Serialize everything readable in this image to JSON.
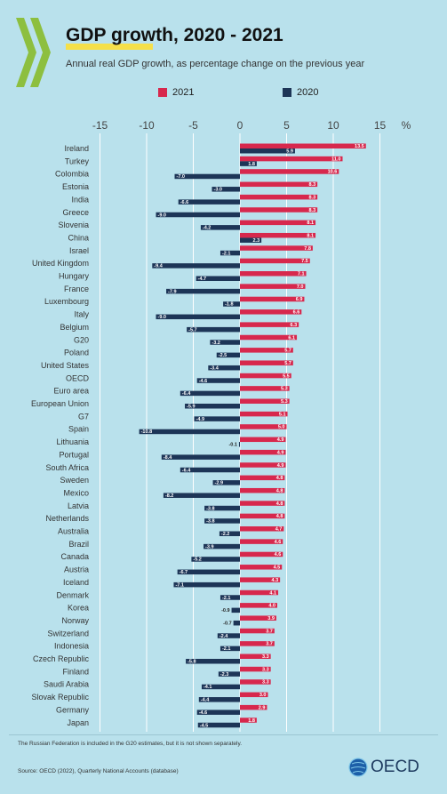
{
  "header": {
    "title": "GDP growth, 2020 - 2021",
    "subtitle": "Annual real GDP growth, as percentage change on the previous year"
  },
  "footer": {
    "note": "The Russian Federation is included in the G20 estimates, but it is not shown separately.",
    "source": "Source: OECD (2022), Quarterly National Accounts (database)",
    "brand": "OECD"
  },
  "colors": {
    "series_2021": "#d7284d",
    "series_2020": "#1d3557",
    "background": "#b9e1ec",
    "grid": "#ffffff",
    "title_highlight": "#f5e04a"
  },
  "chart_data": {
    "type": "bar",
    "orientation": "horizontal",
    "title": "GDP growth, 2020 - 2021",
    "subtitle": "Annual real GDP growth, as percentage change on the previous year",
    "x_unit": "%",
    "xlim": [
      -15,
      15
    ],
    "xticks": [
      -15,
      -10,
      -5,
      0,
      5,
      10,
      15
    ],
    "grid": true,
    "legend_position": "top",
    "categories": [
      "Ireland",
      "Turkey",
      "Colombia",
      "Estonia",
      "India",
      "Greece",
      "Slovenia",
      "China",
      "Israel",
      "United Kingdom",
      "Hungary",
      "France",
      "Luxembourg",
      "Italy",
      "Belgium",
      "G20",
      "Poland",
      "United States",
      "OECD",
      "Euro area",
      "European Union",
      "G7",
      "Spain",
      "Lithuania",
      "Portugal",
      "South Africa",
      "Sweden",
      "Mexico",
      "Latvia",
      "Netherlands",
      "Australia",
      "Brazil",
      "Canada",
      "Austria",
      "Iceland",
      "Denmark",
      "Korea",
      "Norway",
      "Switzerland",
      "Indonesia",
      "Czech Republic",
      "Finland",
      "Saudi Arabia",
      "Slovak Republic",
      "Germany",
      "Japan"
    ],
    "series": [
      {
        "name": "2021",
        "values": [
          13.5,
          11.0,
          10.6,
          8.3,
          8.3,
          8.3,
          8.1,
          8.1,
          7.8,
          7.5,
          7.1,
          7.0,
          6.9,
          6.6,
          6.3,
          6.1,
          5.7,
          5.7,
          5.5,
          5.3,
          5.3,
          5.1,
          5.0,
          4.9,
          4.9,
          4.9,
          4.8,
          4.8,
          4.8,
          4.8,
          4.7,
          4.6,
          4.6,
          4.5,
          4.3,
          4.1,
          4.0,
          3.9,
          3.7,
          3.7,
          3.3,
          3.3,
          3.3,
          3.0,
          2.9,
          1.8
        ],
        "labels": [
          "13.5",
          "11.0",
          "10.6",
          "8.3",
          "8.3",
          "8.3",
          "8.1",
          "8.1",
          "7.8",
          "7.5",
          "7.1",
          "7.0",
          "6.9",
          "6.6",
          "6.3",
          "6.1",
          "5.7",
          "5.7",
          "5.5",
          "5.3",
          "5.3",
          "5.1",
          "5.0",
          "4.9",
          "4.9",
          "4.9",
          "4.8",
          "4.8",
          "4.8",
          "4.8",
          "4.7",
          "4.6",
          "4.6",
          "4.5",
          "4.3",
          "4.1",
          "4.0",
          "3.9",
          "3.7",
          "3.7",
          "3.3",
          "3.3",
          "3.3",
          "3.0",
          "2.9",
          "1.8"
        ]
      },
      {
        "name": "2020",
        "values": [
          5.9,
          1.8,
          -7.0,
          -3.0,
          -6.6,
          -9.0,
          -4.2,
          2.3,
          -2.1,
          -9.4,
          -4.7,
          -7.9,
          -1.8,
          -9.0,
          -5.7,
          -3.2,
          -2.5,
          -3.4,
          -4.6,
          -6.4,
          -5.9,
          -4.9,
          -10.8,
          -0.1,
          -8.4,
          -6.4,
          -2.9,
          -8.2,
          -3.8,
          -3.8,
          -2.2,
          -3.9,
          -5.2,
          -6.7,
          -7.1,
          -2.1,
          -0.9,
          -0.7,
          -2.4,
          -2.1,
          -5.8,
          -2.3,
          -4.1,
          -4.4,
          -4.6,
          -4.5
        ],
        "labels": [
          "5.9",
          "1.8",
          "-7.0",
          "-3.0",
          "-6.6",
          "-9.0",
          "-4.2",
          "2.3",
          "-2.1",
          "-9.4",
          "-4.7",
          "-7.9",
          "-1.8",
          "-9.0",
          "-5.7",
          "-3.2",
          "-2.5",
          "-3.4",
          "-4.6",
          "-6.4",
          "-5.9",
          "-4.9",
          "-10.8",
          "-0.1",
          "-8.4",
          "-6.4",
          "-2.9",
          "-8.2",
          "-3.8",
          "-3.8",
          "-2.2",
          "-3.9",
          "-5.2",
          "-6.7",
          "-7.1",
          "-2.1",
          "-0.9",
          "-0.7",
          "-2.4",
          "-2.1",
          "-5.8",
          "-2.3",
          "-4.1",
          "-4.4",
          "-4.6",
          "-4.5"
        ]
      }
    ]
  }
}
